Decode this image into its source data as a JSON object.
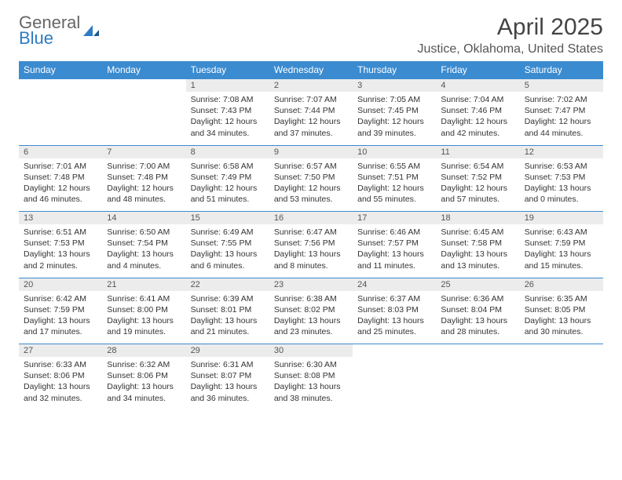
{
  "brand": {
    "line1": "General",
    "line2": "Blue"
  },
  "title": "April 2025",
  "location": "Justice, Oklahoma, United States",
  "colors": {
    "header_bg": "#3b8bd0",
    "header_text": "#ffffff",
    "daynum_bg": "#ececec",
    "rule": "#3b8bd0",
    "brand_blue": "#2e7cc2",
    "text": "#333333",
    "bg": "#ffffff"
  },
  "weekdays": [
    "Sunday",
    "Monday",
    "Tuesday",
    "Wednesday",
    "Thursday",
    "Friday",
    "Saturday"
  ],
  "weeks": [
    {
      "days": [
        null,
        null,
        {
          "n": "1",
          "sr": "7:08 AM",
          "ss": "7:43 PM",
          "dl": "12 hours and 34 minutes."
        },
        {
          "n": "2",
          "sr": "7:07 AM",
          "ss": "7:44 PM",
          "dl": "12 hours and 37 minutes."
        },
        {
          "n": "3",
          "sr": "7:05 AM",
          "ss": "7:45 PM",
          "dl": "12 hours and 39 minutes."
        },
        {
          "n": "4",
          "sr": "7:04 AM",
          "ss": "7:46 PM",
          "dl": "12 hours and 42 minutes."
        },
        {
          "n": "5",
          "sr": "7:02 AM",
          "ss": "7:47 PM",
          "dl": "12 hours and 44 minutes."
        }
      ]
    },
    {
      "days": [
        {
          "n": "6",
          "sr": "7:01 AM",
          "ss": "7:48 PM",
          "dl": "12 hours and 46 minutes."
        },
        {
          "n": "7",
          "sr": "7:00 AM",
          "ss": "7:48 PM",
          "dl": "12 hours and 48 minutes."
        },
        {
          "n": "8",
          "sr": "6:58 AM",
          "ss": "7:49 PM",
          "dl": "12 hours and 51 minutes."
        },
        {
          "n": "9",
          "sr": "6:57 AM",
          "ss": "7:50 PM",
          "dl": "12 hours and 53 minutes."
        },
        {
          "n": "10",
          "sr": "6:55 AM",
          "ss": "7:51 PM",
          "dl": "12 hours and 55 minutes."
        },
        {
          "n": "11",
          "sr": "6:54 AM",
          "ss": "7:52 PM",
          "dl": "12 hours and 57 minutes."
        },
        {
          "n": "12",
          "sr": "6:53 AM",
          "ss": "7:53 PM",
          "dl": "13 hours and 0 minutes."
        }
      ]
    },
    {
      "days": [
        {
          "n": "13",
          "sr": "6:51 AM",
          "ss": "7:53 PM",
          "dl": "13 hours and 2 minutes."
        },
        {
          "n": "14",
          "sr": "6:50 AM",
          "ss": "7:54 PM",
          "dl": "13 hours and 4 minutes."
        },
        {
          "n": "15",
          "sr": "6:49 AM",
          "ss": "7:55 PM",
          "dl": "13 hours and 6 minutes."
        },
        {
          "n": "16",
          "sr": "6:47 AM",
          "ss": "7:56 PM",
          "dl": "13 hours and 8 minutes."
        },
        {
          "n": "17",
          "sr": "6:46 AM",
          "ss": "7:57 PM",
          "dl": "13 hours and 11 minutes."
        },
        {
          "n": "18",
          "sr": "6:45 AM",
          "ss": "7:58 PM",
          "dl": "13 hours and 13 minutes."
        },
        {
          "n": "19",
          "sr": "6:43 AM",
          "ss": "7:59 PM",
          "dl": "13 hours and 15 minutes."
        }
      ]
    },
    {
      "days": [
        {
          "n": "20",
          "sr": "6:42 AM",
          "ss": "7:59 PM",
          "dl": "13 hours and 17 minutes."
        },
        {
          "n": "21",
          "sr": "6:41 AM",
          "ss": "8:00 PM",
          "dl": "13 hours and 19 minutes."
        },
        {
          "n": "22",
          "sr": "6:39 AM",
          "ss": "8:01 PM",
          "dl": "13 hours and 21 minutes."
        },
        {
          "n": "23",
          "sr": "6:38 AM",
          "ss": "8:02 PM",
          "dl": "13 hours and 23 minutes."
        },
        {
          "n": "24",
          "sr": "6:37 AM",
          "ss": "8:03 PM",
          "dl": "13 hours and 25 minutes."
        },
        {
          "n": "25",
          "sr": "6:36 AM",
          "ss": "8:04 PM",
          "dl": "13 hours and 28 minutes."
        },
        {
          "n": "26",
          "sr": "6:35 AM",
          "ss": "8:05 PM",
          "dl": "13 hours and 30 minutes."
        }
      ]
    },
    {
      "days": [
        {
          "n": "27",
          "sr": "6:33 AM",
          "ss": "8:06 PM",
          "dl": "13 hours and 32 minutes."
        },
        {
          "n": "28",
          "sr": "6:32 AM",
          "ss": "8:06 PM",
          "dl": "13 hours and 34 minutes."
        },
        {
          "n": "29",
          "sr": "6:31 AM",
          "ss": "8:07 PM",
          "dl": "13 hours and 36 minutes."
        },
        {
          "n": "30",
          "sr": "6:30 AM",
          "ss": "8:08 PM",
          "dl": "13 hours and 38 minutes."
        },
        null,
        null,
        null
      ]
    }
  ],
  "labels": {
    "sunrise": "Sunrise: ",
    "sunset": "Sunset: ",
    "daylight": "Daylight: "
  }
}
